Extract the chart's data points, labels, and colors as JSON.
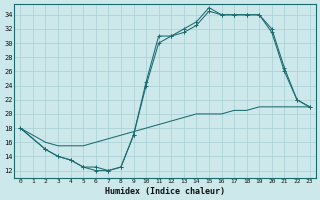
{
  "xlabel": "Humidex (Indice chaleur)",
  "xlim": [
    -0.5,
    23.5
  ],
  "ylim": [
    11,
    35.5
  ],
  "yticks": [
    12,
    14,
    16,
    18,
    20,
    22,
    24,
    26,
    28,
    30,
    32,
    34
  ],
  "xticks": [
    0,
    1,
    2,
    3,
    4,
    5,
    6,
    7,
    8,
    9,
    10,
    11,
    12,
    13,
    14,
    15,
    16,
    17,
    18,
    19,
    20,
    21,
    22,
    23
  ],
  "bg_color": "#cce8ea",
  "grid_color": "#a8cfd2",
  "line_color": "#1a6b6e",
  "line1_x": [
    0,
    1,
    2,
    3,
    4,
    5,
    6,
    7,
    8,
    9,
    10,
    11,
    12,
    13,
    14,
    15,
    16,
    17,
    18,
    19,
    20,
    21,
    22,
    23
  ],
  "line1_y": [
    18,
    17,
    16,
    15.5,
    15.5,
    15.5,
    16,
    16.5,
    17,
    17.5,
    18,
    18.5,
    19,
    19.5,
    20,
    20,
    20,
    20.5,
    20.5,
    21,
    21,
    21,
    21,
    21
  ],
  "line2_x": [
    0,
    2,
    3,
    4,
    5,
    6,
    7,
    8,
    9,
    10,
    11,
    12,
    13,
    14,
    15,
    16,
    17,
    18,
    19,
    20,
    21,
    22,
    23
  ],
  "line2_y": [
    18,
    15,
    14,
    13.5,
    12.5,
    12.5,
    12,
    12.5,
    17,
    24.5,
    31,
    31,
    32,
    33,
    35,
    34,
    34,
    34,
    34,
    32,
    26.5,
    22,
    21
  ],
  "line3_x": [
    0,
    2,
    3,
    4,
    5,
    6,
    7,
    8,
    9,
    10,
    11,
    12,
    13,
    14,
    15,
    16,
    17,
    18,
    19,
    20,
    21,
    22,
    23
  ],
  "line3_y": [
    18,
    15,
    14,
    13.5,
    12.5,
    12,
    12,
    12.5,
    17,
    24,
    30,
    31,
    31.5,
    32.5,
    34.5,
    34,
    34,
    34,
    34,
    31.5,
    26,
    22,
    21
  ]
}
